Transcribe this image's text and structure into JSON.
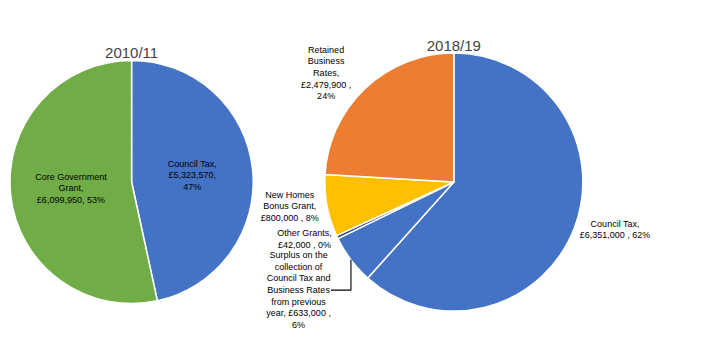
{
  "chart_data": [
    {
      "type": "pie",
      "title": "2010/11",
      "values": [
        5323570,
        6099950
      ],
      "value_labels": [
        "Council Tax,\n£5,323,570,\n47%",
        "Core Government\nGrant,\n£6,099,950, 53%"
      ],
      "colors": [
        "#4472C4",
        "#70AD47"
      ],
      "data_labels": true
    },
    {
      "type": "pie",
      "title": "2018/19",
      "values": [
        6351000,
        633000,
        42000,
        800000,
        2479900
      ],
      "value_labels": [
        "Council Tax,\n£6,351,000 , 62%",
        "Surplus on the\ncollection of\nCouncil Tax and\nBusiness Rates\nfrom previous\nyear, £633,000 ,\n6%",
        "Other Grants,\n£42,000 , 0%",
        "New Homes\nBonus Grant,\n£800,000 , 8%",
        "Retained\nBusiness\nRates,\n£2,479,900 ,\n24%"
      ],
      "colors": [
        "#4472C4",
        "#4472C4",
        "#2E4D8A",
        "#FFC000",
        "#ED7D31"
      ],
      "data_labels": true
    }
  ]
}
